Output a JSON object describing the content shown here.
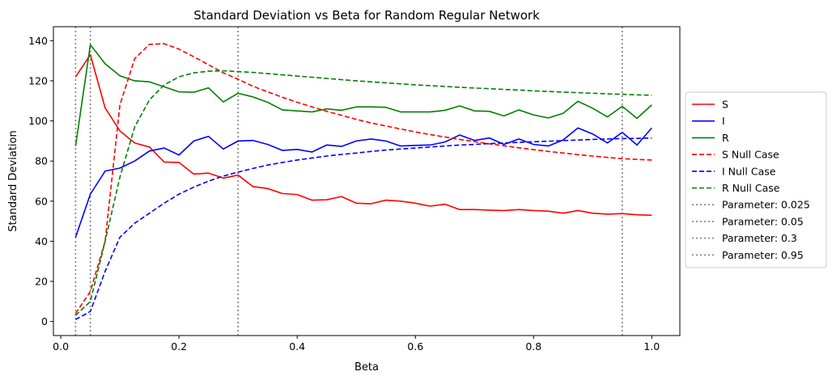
{
  "chart_data": {
    "type": "line",
    "title": "Standard Deviation vs Beta for Random Regular Network",
    "xlabel": "Beta",
    "ylabel": "Standard Deviation",
    "xlim": [
      -0.0125,
      1.0475
    ],
    "ylim": [
      -7,
      147
    ],
    "xticks": [
      0.0,
      0.2,
      0.4,
      0.6,
      0.8,
      1.0
    ],
    "xtick_labels": [
      "0.0",
      "0.2",
      "0.4",
      "0.6",
      "0.8",
      "1.0"
    ],
    "yticks": [
      0,
      20,
      40,
      60,
      80,
      100,
      120,
      140
    ],
    "ytick_labels": [
      "0",
      "20",
      "40",
      "60",
      "80",
      "100",
      "120",
      "140"
    ],
    "grid": false,
    "legend_position": "outside-right",
    "x": [
      0.025,
      0.05,
      0.075,
      0.1,
      0.125,
      0.15,
      0.175,
      0.2,
      0.225,
      0.25,
      0.275,
      0.3,
      0.325,
      0.35,
      0.375,
      0.4,
      0.425,
      0.45,
      0.475,
      0.5,
      0.525,
      0.55,
      0.575,
      0.6,
      0.625,
      0.65,
      0.675,
      0.7,
      0.725,
      0.75,
      0.775,
      0.8,
      0.825,
      0.85,
      0.875,
      0.9,
      0.925,
      0.95,
      0.975,
      1.0
    ],
    "series": [
      {
        "name": "S",
        "color": "#ff0000",
        "style": "solid",
        "values": [
          122,
          133,
          106.5,
          95,
          89,
          87,
          79.5,
          79.3,
          73.5,
          74,
          71.5,
          73,
          67.3,
          66.3,
          63.8,
          63.3,
          60.5,
          60.7,
          62.3,
          59,
          58.7,
          60.5,
          60,
          59,
          57.5,
          58.5,
          55.8,
          55.8,
          55.5,
          55.3,
          55.8,
          55.3,
          55,
          54,
          55.3,
          54,
          53.5,
          53.8,
          53.2,
          53
        ]
      },
      {
        "name": "I",
        "color": "#0000ff",
        "style": "solid",
        "values": [
          42,
          63.5,
          75,
          76.5,
          80,
          85,
          86.5,
          83,
          90,
          92.3,
          86,
          90,
          90.3,
          88.3,
          85.3,
          85.8,
          84.5,
          88,
          87.3,
          90,
          91,
          90,
          87.5,
          87.8,
          88,
          89.5,
          93,
          90.3,
          91.5,
          88.3,
          91,
          88.3,
          87.5,
          90.5,
          96.5,
          93.5,
          89,
          94.3,
          88,
          96.5
        ]
      },
      {
        "name": "R",
        "color": "#008000",
        "style": "solid",
        "values": [
          87.5,
          138,
          128.5,
          122.5,
          120,
          119.5,
          117,
          114.5,
          114.3,
          116.5,
          109.5,
          113.8,
          112,
          109.3,
          105.5,
          105,
          104.5,
          106,
          105.3,
          107,
          107,
          106.8,
          104.5,
          104.5,
          104.5,
          105.3,
          107.5,
          105,
          104.8,
          102.5,
          105.5,
          103,
          101.5,
          103.8,
          109.8,
          106.3,
          102,
          107.3,
          101.3,
          108
        ]
      },
      {
        "name": "S Null Case",
        "color": "#ff0000",
        "style": "dashed",
        "values": [
          4,
          15,
          40,
          108,
          131,
          138.2,
          138.5,
          135.8,
          132,
          128,
          124,
          120.8,
          117.3,
          114.5,
          111.8,
          109.3,
          107,
          104.8,
          102.8,
          100.8,
          99,
          97.5,
          96,
          94.5,
          93.2,
          92,
          90.8,
          89.7,
          88.6,
          87.6,
          86.6,
          85.7,
          84.8,
          84,
          83.2,
          82.5,
          81.8,
          81.2,
          80.8,
          80.5
        ]
      },
      {
        "name": "I Null Case",
        "color": "#0000ff",
        "style": "dashed",
        "values": [
          1,
          5,
          25,
          42,
          49,
          54,
          59,
          63.5,
          67,
          70,
          72.5,
          74.5,
          76.3,
          78,
          79.3,
          80.5,
          81.5,
          82.5,
          83.3,
          84,
          84.8,
          85.5,
          86,
          86.5,
          87,
          87.5,
          88,
          88.3,
          88.7,
          89,
          89.3,
          89.6,
          89.9,
          90.2,
          90.5,
          90.8,
          91,
          91.2,
          91.3,
          91.5
        ]
      },
      {
        "name": "R Null Case",
        "color": "#008000",
        "style": "dashed",
        "values": [
          3,
          10,
          40,
          72,
          97,
          110.5,
          118,
          122,
          124,
          124.8,
          125,
          124.6,
          124.2,
          123.6,
          123,
          122.4,
          121.8,
          121.2,
          120.6,
          120,
          119.5,
          119,
          118.5,
          118,
          117.6,
          117.2,
          116.8,
          116.4,
          116.1,
          115.7,
          115.4,
          115,
          114.7,
          114.4,
          114.1,
          113.8,
          113.5,
          113.3,
          113,
          112.8
        ]
      }
    ],
    "vlines": [
      {
        "name": "Parameter: 0.025",
        "x": 0.025,
        "color": "#808080",
        "style": "dotted"
      },
      {
        "name": "Parameter: 0.05",
        "x": 0.05,
        "color": "#808080",
        "style": "dotted"
      },
      {
        "name": "Parameter: 0.3",
        "x": 0.3,
        "color": "#808080",
        "style": "dotted"
      },
      {
        "name": "Parameter: 0.95",
        "x": 0.95,
        "color": "#808080",
        "style": "dotted"
      }
    ]
  }
}
